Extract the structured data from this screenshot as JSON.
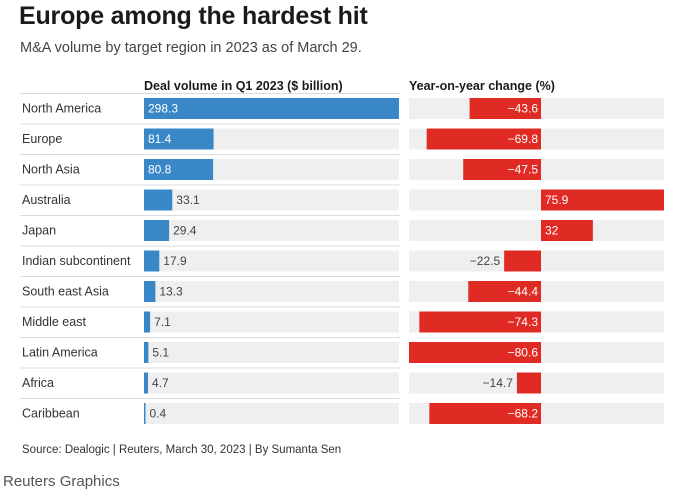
{
  "header": {
    "title": "Europe among the hardest hit",
    "subtitle": "M&A volume by target region in 2023 as of March 29."
  },
  "footer": {
    "source": "Source: Dealogic | Reuters, March 30, 2023 | By Sumanta Sen",
    "brand": "Reuters Graphics"
  },
  "colors": {
    "volume_bar": "#3a87c8",
    "change_bar": "#e02b24",
    "row_background": "#efefef",
    "divider": "#cfcfcf"
  },
  "chart_data": [
    {
      "type": "bar",
      "orientation": "horizontal",
      "title": "Deal volume in Q1 2023 ($ billion)",
      "categories": [
        "North America",
        "Europe",
        "North Asia",
        "Australia",
        "Japan",
        "Indian subcontinent",
        "South east Asia",
        "Middle east",
        "Latin America",
        "Africa",
        "Caribbean"
      ],
      "values": [
        298.3,
        81.4,
        80.8,
        33.1,
        29.4,
        17.9,
        13.3,
        7.1,
        5.1,
        4.7,
        0.4
      ],
      "value_labels": [
        "298.3",
        "81.4",
        "80.8",
        "33.1",
        "29.4",
        "17.9",
        "13.3",
        "7.1",
        "5.1",
        "4.7",
        "0.4"
      ],
      "xlim": [
        0,
        298.3
      ],
      "color": "#3a87c8"
    },
    {
      "type": "bar",
      "orientation": "horizontal",
      "title": "Year-on-year change (%)",
      "categories": [
        "North America",
        "Europe",
        "North Asia",
        "Australia",
        "Japan",
        "Indian subcontinent",
        "South east Asia",
        "Middle east",
        "Latin America",
        "Africa",
        "Caribbean"
      ],
      "values": [
        -43.6,
        -69.8,
        -47.5,
        75.9,
        32,
        -22.5,
        -44.4,
        -74.3,
        -80.6,
        -14.7,
        -68.2
      ],
      "value_labels": [
        "−43.6",
        "−69.8",
        "−47.5",
        "75.9",
        "32",
        "−22.5",
        "−44.4",
        "−74.3",
        "−80.6",
        "−14.7",
        "−68.2"
      ],
      "xlim": [
        -80.6,
        75.9
      ],
      "color": "#e02b24"
    }
  ]
}
